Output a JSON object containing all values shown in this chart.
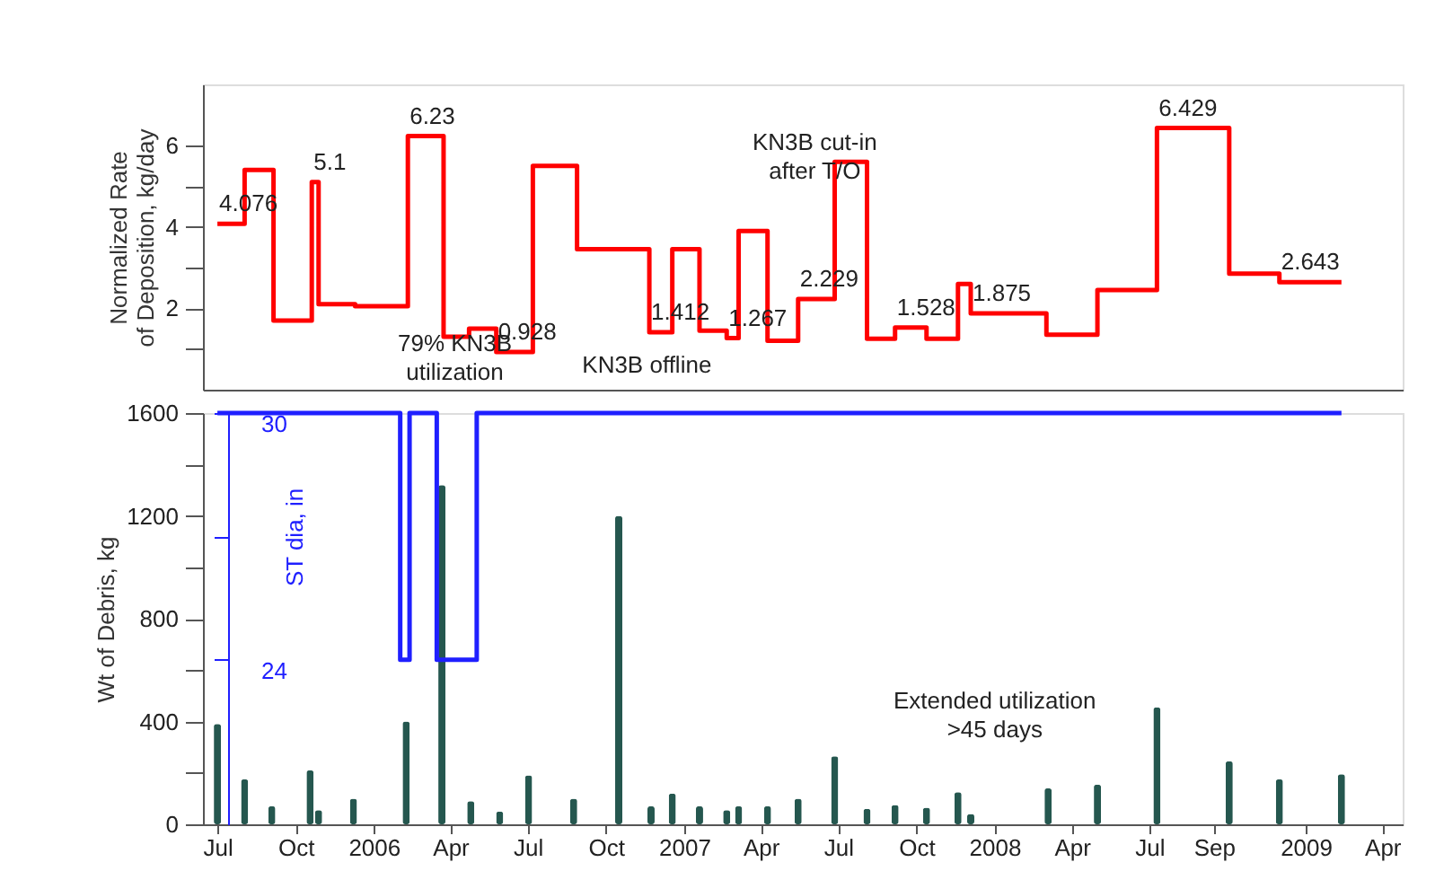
{
  "chart_data": [
    {
      "type": "step",
      "ylabel": "Normalized Rate\nof Deposition, kg/day",
      "xlim": [
        "2005-06-14",
        "2009-04-25"
      ],
      "ylim": [
        0,
        7.5
      ],
      "yticks": [
        {
          "value": 1,
          "label": null
        },
        2,
        {
          "value": 3,
          "label": null
        },
        4,
        {
          "value": 5,
          "label": null
        },
        6
      ],
      "tick_labels": "y",
      "grid": false,
      "line_style": "solid",
      "series": [
        {
          "color": "#ff0000",
          "x": [
            "2005-07-01",
            "2005-08-02",
            "2005-09-05",
            "2005-10-20",
            "2005-10-28",
            "2005-12-10",
            "2006-02-10",
            "2006-03-24",
            "2006-04-23",
            "2006-05-25",
            "2006-07-07",
            "2006-08-28",
            "2006-11-21",
            "2006-12-18",
            "2007-01-19",
            "2007-02-20",
            "2007-03-06",
            "2007-04-09",
            "2007-05-15",
            "2007-06-27",
            "2007-08-04",
            "2007-09-06",
            "2007-10-13",
            "2007-11-19",
            "2007-12-04",
            "2008-03-02",
            "2008-05-01",
            "2008-07-10",
            "2008-10-03",
            "2008-12-01",
            "2009-02-12"
          ],
          "values": [
            4.076,
            5.4,
            1.7,
            5.1,
            2.1,
            2.05,
            6.23,
            1.3,
            1.5,
            0.928,
            5.5,
            3.45,
            1.412,
            3.45,
            1.45,
            1.267,
            3.9,
            1.2,
            2.229,
            5.6,
            1.25,
            1.528,
            1.25,
            2.6,
            1.875,
            1.35,
            2.45,
            6.429,
            2.85,
            2.643,
            2.643
          ]
        }
      ],
      "annotations": [
        {
          "text": "4.076",
          "x": "2005-07-01",
          "y": 4.076
        },
        {
          "text": "5.1",
          "x": "2005-10-20",
          "y": 5.1
        },
        {
          "text": "6.23",
          "x": "2006-02-10",
          "y": 6.23
        },
        {
          "text": "0.928",
          "x": "2006-05-25",
          "y": 0.928
        },
        "79% KN3B\nutilization",
        "KN3B offline",
        {
          "text": "1.412",
          "x": "2006-11-21",
          "y": 1.412
        },
        {
          "text": "1.267",
          "x": "2007-02-20",
          "y": 1.267
        },
        {
          "text": "2.229",
          "x": "2007-05-15",
          "y": 2.229
        },
        {
          "text": "1.528",
          "x": "2007-09-06",
          "y": 1.528
        },
        {
          "text": "1.875",
          "x": "2007-12-04",
          "y": 1.875
        },
        {
          "text": "6.429",
          "x": "2008-07-10",
          "y": 6.429
        },
        {
          "text": "2.643",
          "x": "2008-12-01",
          "y": 2.643
        },
        "KN3B cut-in\nafter T/O"
      ]
    },
    {
      "type": "bar",
      "ylabel": "Wt of Debris, kg",
      "y3label": "ST dia, in",
      "xlim": [
        "2005-06-14",
        "2009-04-25"
      ],
      "xticks": [
        {
          "value": "2005-07-01",
          "label": "Jul"
        },
        {
          "value": "2005-10-01",
          "label": "Oct"
        },
        {
          "value": "2006-01-01",
          "label": "2006"
        },
        {
          "value": "2006-04-01",
          "label": "Apr"
        },
        {
          "value": "2006-07-01",
          "label": "Jul"
        },
        {
          "value": "2006-10-01",
          "label": "Oct"
        },
        {
          "value": "2007-01-01",
          "label": "2007"
        },
        {
          "value": "2007-04-01",
          "label": "Apr"
        },
        {
          "value": "2007-07-01",
          "label": "Jul"
        },
        {
          "value": "2007-10-01",
          "label": "Oct"
        },
        {
          "value": "2008-01-01",
          "label": "2008"
        },
        {
          "value": "2008-04-01",
          "label": "Apr"
        },
        {
          "value": "2008-07-01",
          "label": "Jul"
        },
        {
          "value": "2008-09-15",
          "label": "Sep"
        },
        {
          "value": "2009-01-01",
          "label": "2009"
        },
        {
          "value": "2009-04-01",
          "label": "Apr"
        }
      ],
      "ylim": [
        0,
        1600
      ],
      "yticks": [
        0,
        {
          "value": 200,
          "label": null
        },
        400,
        {
          "value": 600,
          "label": null
        },
        800,
        {
          "value": 1000,
          "label": null
        },
        1200,
        {
          "value": 1400,
          "label": null
        },
        1600
      ],
      "y3lim": [
        20,
        30
      ],
      "y3ticks": [
        24,
        {
          "value": 27,
          "label": null
        },
        30
      ],
      "grid": false,
      "series": [
        {
          "type": "bar",
          "color": "#25574f",
          "x": [
            "2005-07-01",
            "2005-08-02",
            "2005-09-03",
            "2005-10-18",
            "2005-10-28",
            "2005-12-08",
            "2006-02-08",
            "2006-03-22",
            "2006-04-25",
            "2006-05-29",
            "2006-07-02",
            "2006-08-24",
            "2006-10-16",
            "2006-11-23",
            "2006-12-18",
            "2007-01-19",
            "2007-02-20",
            "2007-03-06",
            "2007-04-09",
            "2007-05-15",
            "2007-06-27",
            "2007-08-04",
            "2007-09-06",
            "2007-10-13",
            "2007-11-19",
            "2007-12-04",
            "2008-03-04",
            "2008-05-01",
            "2008-07-10",
            "2008-10-03",
            "2008-12-01",
            "2009-02-12"
          ],
          "values": [
            390,
            175,
            70,
            210,
            55,
            100,
            400,
            1320,
            90,
            50,
            190,
            100,
            1200,
            70,
            120,
            70,
            55,
            70,
            70,
            100,
            265,
            60,
            75,
            65,
            125,
            40,
            140,
            155,
            455,
            245,
            175,
            195
          ]
        },
        {
          "type": "step",
          "axis": "y3",
          "color": "#1f1fff",
          "line_style": "solid",
          "x": [
            "2005-07-01",
            "2006-02-01",
            "2006-02-12",
            "2006-03-16",
            "2006-05-02",
            "2009-02-12"
          ],
          "values": [
            30,
            24,
            30,
            24,
            30,
            30
          ]
        }
      ],
      "annotations": [
        "Extended utilization\n>45 days"
      ]
    }
  ]
}
